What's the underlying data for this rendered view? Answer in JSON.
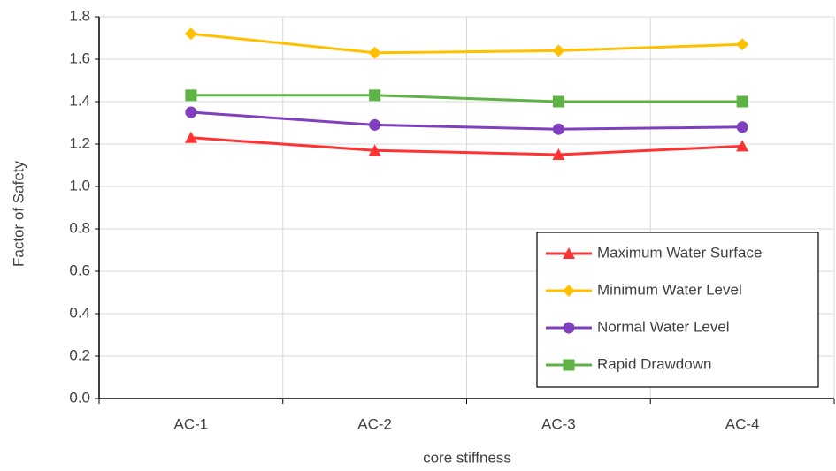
{
  "chart_data": {
    "type": "line",
    "x_label": "core stiffness",
    "y_label": "Factor of Safety",
    "categories": [
      "AC-1",
      "AC-2",
      "AC-3",
      "AC-4"
    ],
    "series": [
      {
        "name": "Maximum Water Surface",
        "color": "#ff3333",
        "marker": "triangle",
        "values": [
          1.23,
          1.17,
          1.15,
          1.19
        ]
      },
      {
        "name": "Minimum Water Level",
        "color": "#ffc000",
        "marker": "diamond",
        "values": [
          1.72,
          1.63,
          1.64,
          1.67
        ]
      },
      {
        "name": "Normal Water Level",
        "color": "#7f3fbf",
        "marker": "circle",
        "values": [
          1.35,
          1.29,
          1.27,
          1.28
        ]
      },
      {
        "name": "Rapid Drawdown",
        "color": "#5fb346",
        "marker": "square",
        "values": [
          1.43,
          1.43,
          1.4,
          1.4
        ]
      }
    ],
    "ylim": [
      0,
      1.8
    ],
    "yticks": [
      {
        "value": 0,
        "label": "0.0"
      },
      0.2,
      0.4,
      0.6,
      0.8,
      {
        "value": 1,
        "label": "1.0"
      },
      1.2,
      1.4,
      1.6,
      1.8
    ],
    "grid": true,
    "legend": "lower right"
  }
}
